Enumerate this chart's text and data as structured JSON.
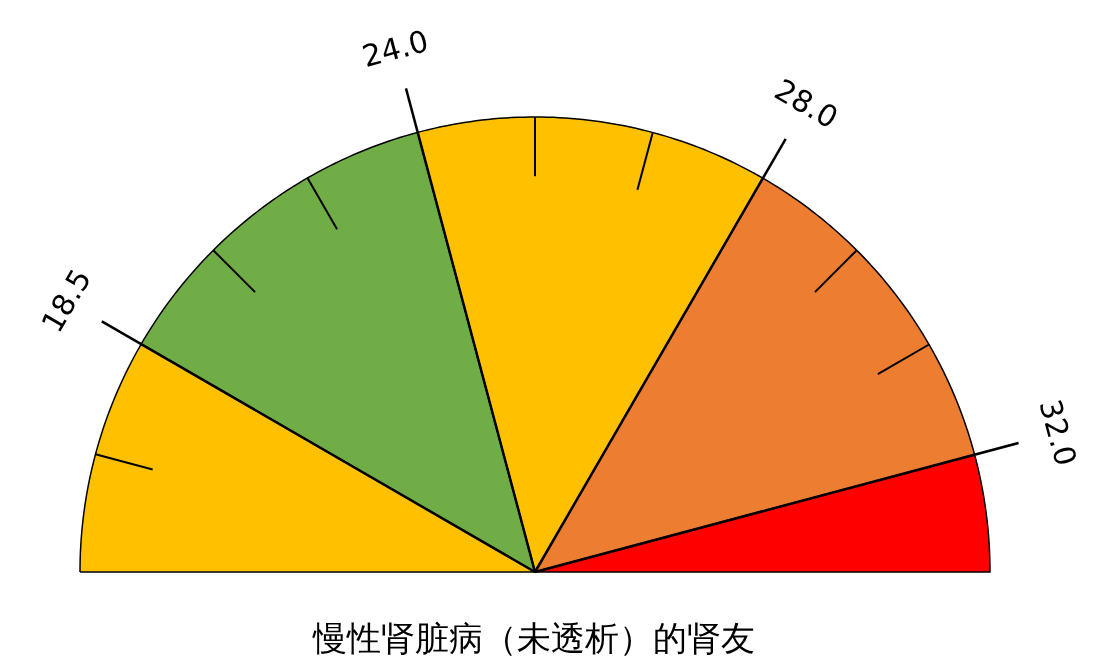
{
  "chart_data": {
    "type": "pie",
    "title": "慢性肾脏病（未透析）的肾友",
    "categories": [
      null,
      null,
      null,
      null,
      null
    ],
    "values": [
      16.7,
      25,
      25,
      25,
      8.3
    ],
    "colors": [
      "#ffc000",
      "#70ad47",
      "#ffc000",
      "#ed7d31",
      "#ff0000"
    ],
    "annotations": [
      "18.5",
      "24.0",
      "28.0",
      "32.0"
    ]
  }
}
